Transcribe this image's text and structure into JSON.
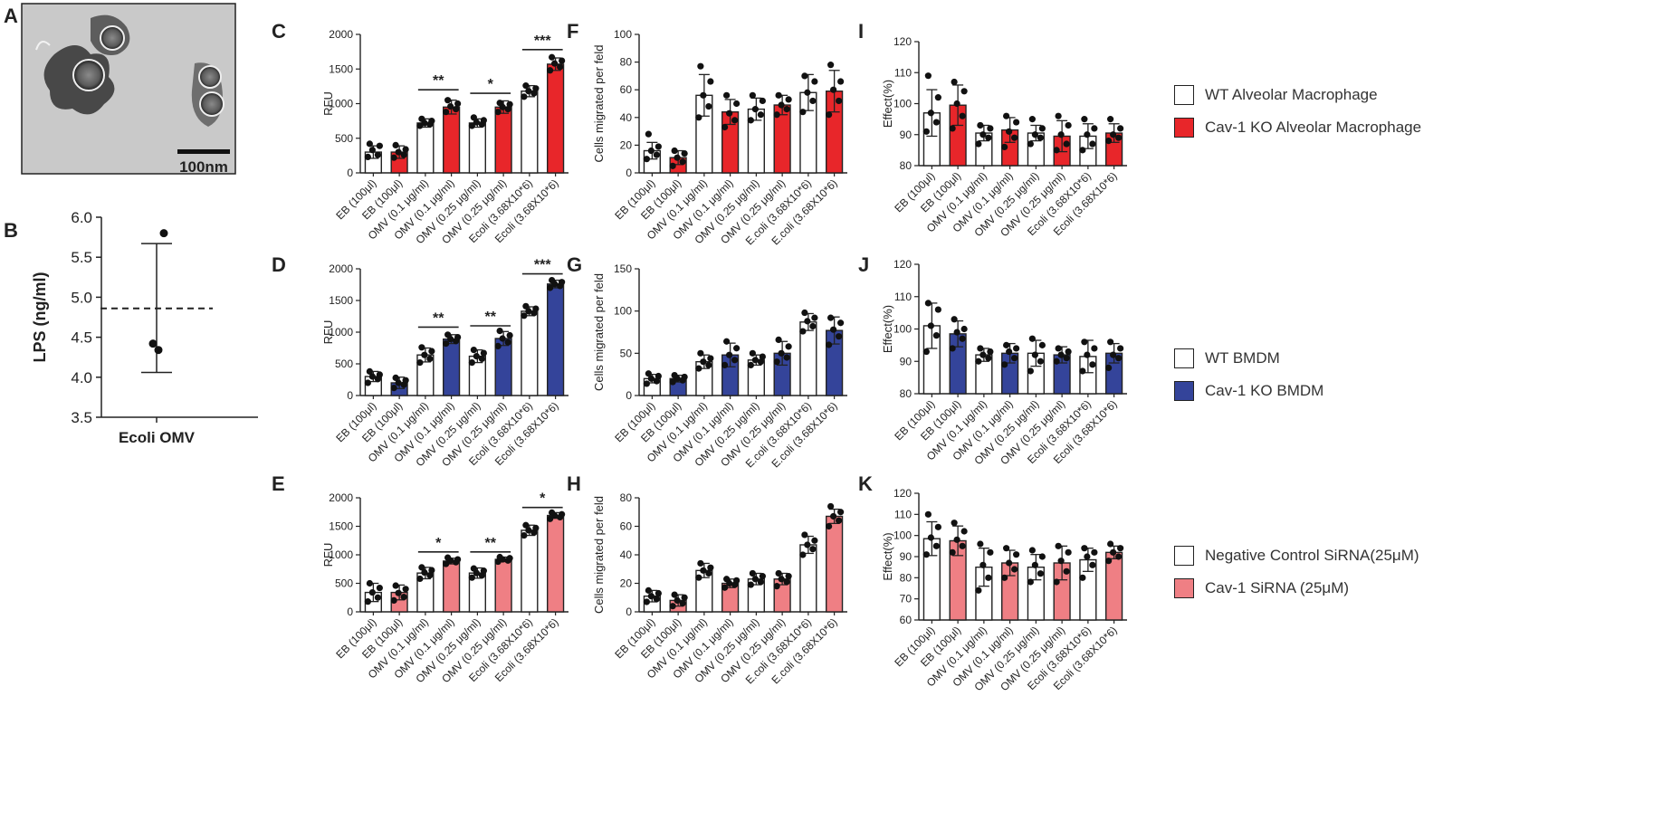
{
  "labels": {
    "A": "A",
    "B": "B",
    "C": "C",
    "D": "D",
    "E": "E",
    "F": "F",
    "G": "G",
    "H": "H",
    "I": "I",
    "J": "J",
    "K": "K"
  },
  "micrograph": {
    "scale_label": "100nm"
  },
  "colors": {
    "alveolar": "#e8262a",
    "bmdm": "#34449a",
    "sirna": "#ef7f84",
    "wt": "#ffffff"
  },
  "legends": [
    {
      "wt_label": "WT Alveolar Macrophage",
      "ko_label": "Cav-1 KO Alveolar Macrophage"
    },
    {
      "wt_label": "WT BMDM",
      "ko_label": "Cav-1 KO BMDM"
    },
    {
      "wt_label": "Negative Control SiRNA(25μM)",
      "ko_label": "Cav-1 SiRNA (25μM)"
    }
  ],
  "chart_data": [
    {
      "id": "B",
      "type": "scatter",
      "ylabel": "LPS (ng/ml)",
      "ylim": [
        3.5,
        6.0
      ],
      "yticks": [
        "3.5",
        "4.0",
        "4.5",
        "5.0",
        "5.5",
        "6.0"
      ],
      "category": "Ecoli OMV",
      "points": [
        5.8,
        4.42,
        4.34
      ],
      "mean": 4.86,
      "sd_upper": 5.67,
      "sd_lower": 4.06
    },
    {
      "id": "C",
      "type": "bar",
      "ylabel": "RFU",
      "ylim": [
        0,
        2000
      ],
      "yticks": [
        "0",
        "500",
        "1000",
        "1500",
        "2000"
      ],
      "color": "alveolar",
      "categories": [
        "EB (100μl)",
        "EB (100μl)",
        "OMV (0.1 μg/ml)",
        "OMV (0.1 μg/ml)",
        "OMV (0.25 μg/ml)",
        "OMV (0.25 μg/ml)",
        "Ecoli (3.68X10^6)",
        "Ecoli (3.68X10^6)"
      ],
      "values": [
        300,
        300,
        720,
        950,
        720,
        950,
        1180,
        1570
      ],
      "errors": [
        90,
        90,
        60,
        100,
        60,
        90,
        80,
        90
      ],
      "points": [
        [
          230,
          260,
          330,
          390,
          420
        ],
        [
          220,
          260,
          300,
          340,
          400
        ],
        [
          680,
          700,
          720,
          750,
          780
        ],
        [
          880,
          920,
          960,
          1000,
          1050
        ],
        [
          680,
          700,
          730,
          760,
          800
        ],
        [
          880,
          920,
          950,
          990,
          1010
        ],
        [
          1100,
          1150,
          1180,
          1220,
          1260
        ],
        [
          1480,
          1530,
          1580,
          1620,
          1670
        ]
      ],
      "significance": [
        {
          "from": 2,
          "to": 3,
          "label": "**",
          "at": 1200
        },
        {
          "from": 4,
          "to": 5,
          "label": "*",
          "at": 1150
        },
        {
          "from": 6,
          "to": 7,
          "label": "***",
          "at": 1780
        }
      ]
    },
    {
      "id": "D",
      "type": "bar",
      "ylabel": "RFU",
      "ylim": [
        0,
        2000
      ],
      "yticks": [
        "0",
        "500",
        "1000",
        "1500",
        "2000"
      ],
      "color": "bmdm",
      "categories": [
        "EB (100μl)",
        "EB (100μl)",
        "OMV (0.1 μg/ml)",
        "OMV (0.1 μg/ml)",
        "OMV (0.25 μg/ml)",
        "OMV (0.25 μg/ml)",
        "Ecoli (3.68X10^6)",
        "Ecoli (3.68X10^6)"
      ],
      "values": [
        300,
        200,
        640,
        890,
        620,
        900,
        1330,
        1760
      ],
      "errors": [
        80,
        90,
        110,
        70,
        100,
        110,
        70,
        60
      ],
      "points": [
        [
          200,
          260,
          300,
          330,
          380
        ],
        [
          120,
          170,
          200,
          240,
          280
        ],
        [
          520,
          580,
          640,
          700,
          760
        ],
        [
          820,
          860,
          890,
          920,
          960
        ],
        [
          520,
          580,
          620,
          670,
          720
        ],
        [
          780,
          840,
          900,
          950,
          1020
        ],
        [
          1260,
          1300,
          1330,
          1370,
          1410
        ],
        [
          1700,
          1730,
          1760,
          1790,
          1820
        ]
      ],
      "significance": [
        {
          "from": 2,
          "to": 3,
          "label": "**",
          "at": 1080
        },
        {
          "from": 4,
          "to": 5,
          "label": "**",
          "at": 1100
        },
        {
          "from": 6,
          "to": 7,
          "label": "***",
          "at": 1920
        }
      ]
    },
    {
      "id": "E",
      "type": "bar",
      "ylabel": "RFU",
      "ylim": [
        0,
        2000
      ],
      "yticks": [
        "0",
        "500",
        "1000",
        "1500",
        "2000"
      ],
      "color": "sirna",
      "categories": [
        "EB (100μl)",
        "EB (100μl)",
        "OMV (0.1 μg/ml)",
        "OMV (0.1 μg/ml)",
        "OMV (0.25 μg/ml)",
        "OMV (0.25 μg/ml)",
        "Ecoli (3.68X10^6)",
        "Ecoli (3.68X10^6)"
      ],
      "values": [
        340,
        340,
        680,
        890,
        680,
        920,
        1430,
        1690
      ],
      "errors": [
        160,
        130,
        100,
        50,
        90,
        40,
        90,
        50
      ],
      "points": [
        [
          180,
          250,
          340,
          420,
          500
        ],
        [
          200,
          260,
          330,
          400,
          460
        ],
        [
          580,
          640,
          690,
          730,
          780
        ],
        [
          840,
          870,
          900,
          920,
          950
        ],
        [
          600,
          640,
          680,
          720,
          760
        ],
        [
          880,
          900,
          920,
          940,
          960
        ],
        [
          1340,
          1390,
          1430,
          1470,
          1520
        ],
        [
          1630,
          1660,
          1690,
          1710,
          1740
        ]
      ],
      "significance": [
        {
          "from": 2,
          "to": 3,
          "label": "*",
          "at": 1050
        },
        {
          "from": 4,
          "to": 5,
          "label": "**",
          "at": 1050
        },
        {
          "from": 6,
          "to": 7,
          "label": "*",
          "at": 1830
        }
      ]
    },
    {
      "id": "F",
      "type": "bar",
      "ylabel": "Cells migrated per feld",
      "ylim": [
        0,
        100
      ],
      "yticks": [
        "0",
        "20",
        "40",
        "60",
        "80",
        "100"
      ],
      "color": "alveolar",
      "categories": [
        "EB (100μl)",
        "EB (100μl)",
        "OMV (0.1 μg/ml)",
        "OMV (0.1 μg/ml)",
        "OMV (0.25 μg/ml)",
        "OMV (0.25 μg/ml)",
        "E.coli (3.68X10^6)",
        "E.coli (3.68X10^6)"
      ],
      "values": [
        16,
        11,
        56,
        44,
        46,
        49,
        58,
        59
      ],
      "errors": [
        6,
        5,
        15,
        9,
        8,
        7,
        13,
        15
      ],
      "points": [
        [
          10,
          13,
          16,
          19,
          28
        ],
        [
          5,
          8,
          11,
          14,
          16
        ],
        [
          40,
          48,
          56,
          66,
          77
        ],
        [
          33,
          38,
          43,
          50,
          56
        ],
        [
          38,
          42,
          46,
          52,
          56
        ],
        [
          42,
          46,
          49,
          53,
          56
        ],
        [
          44,
          52,
          58,
          66,
          70
        ],
        [
          42,
          52,
          60,
          66,
          78
        ]
      ],
      "significance": []
    },
    {
      "id": "G",
      "type": "bar",
      "ylabel": "Cells migrated per feld",
      "ylim": [
        0,
        150
      ],
      "yticks": [
        "0",
        "50",
        "100",
        "150"
      ],
      "color": "bmdm",
      "categories": [
        "EB (100μl)",
        "EB (100μl)",
        "OMV (0.1 μg/ml)",
        "OMV (0.1 μg/ml)",
        "OMV (0.25 μg/ml)",
        "OMV (0.25 μg/ml)",
        "E.coli (3.68X10^6)",
        "E.coli (3.68X10^6)"
      ],
      "values": [
        20,
        20,
        40,
        48,
        42,
        50,
        87,
        77
      ],
      "errors": [
        5,
        4,
        8,
        14,
        6,
        14,
        10,
        16
      ],
      "points": [
        [
          14,
          17,
          20,
          23,
          26
        ],
        [
          16,
          18,
          20,
          22,
          24
        ],
        [
          32,
          36,
          40,
          44,
          50
        ],
        [
          36,
          42,
          48,
          56,
          64
        ],
        [
          36,
          40,
          42,
          46,
          50
        ],
        [
          40,
          45,
          50,
          58,
          66
        ],
        [
          76,
          82,
          88,
          92,
          98
        ],
        [
          60,
          70,
          78,
          86,
          92
        ]
      ],
      "significance": []
    },
    {
      "id": "H",
      "type": "bar",
      "ylabel": "Cells migrated per feld",
      "ylim": [
        0,
        80
      ],
      "yticks": [
        "0",
        "20",
        "40",
        "60",
        "80"
      ],
      "color": "sirna",
      "categories": [
        "EB (100μl)",
        "EB (100μl)",
        "OMV (0.1 μg/ml)",
        "OMV (0.1 μg/ml)",
        "OMV (0.25 μg/ml)",
        "OMV (0.25 μg/ml)",
        "E.coli (3.68X10^6)",
        "E.coli (3.68X10^6)"
      ],
      "values": [
        11,
        8,
        29,
        20,
        23,
        23,
        47,
        67
      ],
      "errors": [
        4,
        4,
        5,
        3,
        4,
        4,
        6,
        5
      ],
      "points": [
        [
          7,
          9,
          11,
          13,
          15
        ],
        [
          4,
          6,
          8,
          10,
          12
        ],
        [
          24,
          27,
          29,
          31,
          34
        ],
        [
          17,
          19,
          20,
          22,
          23
        ],
        [
          19,
          21,
          23,
          25,
          27
        ],
        [
          18,
          21,
          23,
          25,
          27
        ],
        [
          40,
          44,
          47,
          50,
          54
        ],
        [
          60,
          64,
          67,
          70,
          74
        ]
      ],
      "significance": []
    },
    {
      "id": "I",
      "type": "bar",
      "ylabel": "Effect(%)",
      "ylim": [
        80,
        120
      ],
      "yticks": [
        "80",
        "90",
        "100",
        "110",
        "120"
      ],
      "color": "alveolar",
      "categories": [
        "EB (100μl)",
        "EB (100μl)",
        "OMV (0.1 μg/ml)",
        "OMV (0.1 μg/ml)",
        "OMV (0.25 μg/ml)",
        "OMV (0.25 μg/ml)",
        "Ecoli (3.68X10^6)",
        "Ecoli (3.68X10^6)"
      ],
      "values": [
        97,
        99.5,
        90.5,
        91.5,
        90.5,
        89.5,
        89.5,
        90.5
      ],
      "errors": [
        7.5,
        6.5,
        2.5,
        4,
        2.5,
        5,
        4,
        3
      ],
      "points": [
        [
          91,
          94,
          97,
          102,
          109
        ],
        [
          92,
          96,
          100,
          104,
          107
        ],
        [
          87,
          89,
          90,
          92,
          93
        ],
        [
          86,
          89,
          91,
          94,
          96
        ],
        [
          87,
          89,
          90,
          92,
          95
        ],
        [
          85,
          87,
          90,
          93,
          96
        ],
        [
          85,
          87,
          90,
          92,
          95
        ],
        [
          88,
          89,
          90,
          92,
          95
        ]
      ],
      "significance": []
    },
    {
      "id": "J",
      "type": "bar",
      "ylabel": "Effect(%)",
      "ylim": [
        80,
        120
      ],
      "yticks": [
        "80",
        "90",
        "100",
        "110",
        "120"
      ],
      "color": "bmdm",
      "categories": [
        "EB (100μl)",
        "EB (100μl)",
        "OMV (0.1 μg/ml)",
        "OMV (0.1 μg/ml)",
        "OMV (0.25 μg/ml)",
        "OMV (0.25 μg/ml)",
        "Ecoli (3.68X10^6)",
        "Ecoli (3.68X10^6)"
      ],
      "values": [
        101,
        98.5,
        92,
        92.5,
        92.5,
        92,
        91.5,
        92.5
      ],
      "errors": [
        7,
        4,
        2,
        3,
        4,
        2.5,
        5,
        3
      ],
      "points": [
        [
          93,
          98,
          101,
          106,
          108
        ],
        [
          94,
          97,
          99,
          100,
          103
        ],
        [
          90,
          91,
          92,
          93,
          94
        ],
        [
          89,
          91,
          93,
          94,
          95
        ],
        [
          87,
          90,
          92,
          95,
          97
        ],
        [
          90,
          91,
          92,
          93,
          94
        ],
        [
          87,
          89,
          92,
          94,
          96
        ],
        [
          88,
          91,
          92,
          94,
          96
        ]
      ],
      "significance": []
    },
    {
      "id": "K",
      "type": "bar",
      "ylabel": "Effect(%)",
      "ylim": [
        60,
        120
      ],
      "yticks": [
        "60",
        "70",
        "80",
        "90",
        "100",
        "110",
        "120"
      ],
      "color": "sirna",
      "categories": [
        "EB (100μl)",
        "EB (100μl)",
        "OMV (0.1 μg/ml)",
        "OMV (0.1 μg/ml)",
        "OMV (0.25 μg/ml)",
        "OMV (0.25 μg/ml)",
        "Ecoli (3.68X10^6)",
        "Ecoli (3.68X10^6)"
      ],
      "values": [
        98.5,
        97.5,
        85,
        87,
        85,
        87,
        88.5,
        92
      ],
      "errors": [
        8,
        7,
        9,
        6,
        6,
        8,
        5.5,
        3
      ],
      "points": [
        [
          91,
          95,
          99,
          104,
          110
        ],
        [
          92,
          95,
          98,
          102,
          106
        ],
        [
          74,
          80,
          86,
          92,
          96
        ],
        [
          80,
          84,
          87,
          91,
          94
        ],
        [
          78,
          82,
          86,
          90,
          93
        ],
        [
          78,
          83,
          88,
          92,
          95
        ],
        [
          80,
          86,
          90,
          92,
          94
        ],
        [
          88,
          90,
          92,
          94,
          96
        ]
      ],
      "significance": []
    }
  ]
}
